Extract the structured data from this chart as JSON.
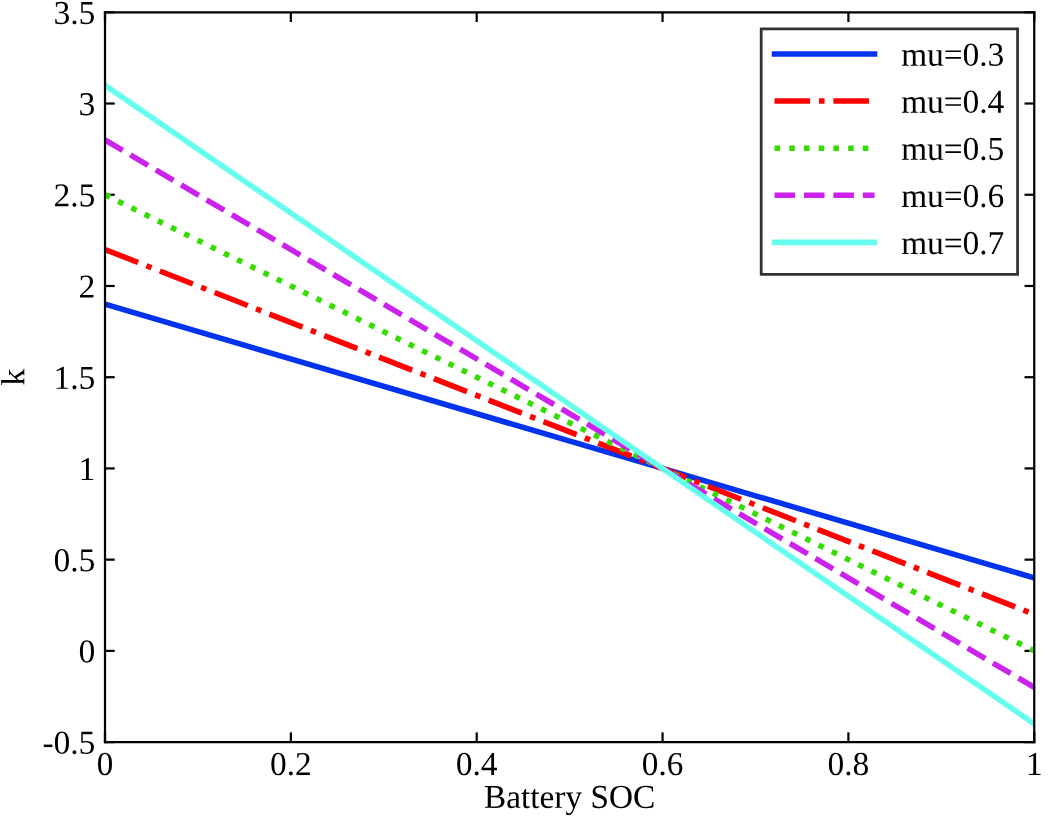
{
  "chart_data": {
    "type": "line",
    "xlabel": "Battery SOC",
    "ylabel": "k",
    "x": [
      0,
      0.6,
      1
    ],
    "series": [
      {
        "name": "mu=0.3",
        "color": "#0033ee",
        "line_style": "solid",
        "values": [
          1.9,
          1.0,
          0.4
        ]
      },
      {
        "name": "mu=0.4",
        "color": "#ff0000",
        "line_style": "dashdot",
        "values": [
          2.2,
          1.0,
          0.2
        ]
      },
      {
        "name": "mu=0.5",
        "color": "#33dd00",
        "line_style": "dotted",
        "values": [
          2.5,
          1.0,
          0
        ]
      },
      {
        "name": "mu=0.6",
        "color": "#cc22ee",
        "line_style": "dashed",
        "values": [
          2.8,
          1.0,
          -0.2
        ]
      },
      {
        "name": "mu=0.7",
        "color": "#66ffee",
        "line_style": "solid",
        "values": [
          3.1,
          1.0,
          -0.4
        ]
      }
    ],
    "xlim": [
      0,
      1
    ],
    "xticks": [
      0,
      0.2,
      0.4,
      0.6,
      0.8,
      1
    ],
    "ylim": [
      -0.5,
      3.5
    ],
    "yticks": [
      -0.5,
      0,
      0.5,
      1,
      1.5,
      2,
      2.5,
      3,
      3.5
    ],
    "grid": false,
    "legend": "top right",
    "marker": "none"
  }
}
